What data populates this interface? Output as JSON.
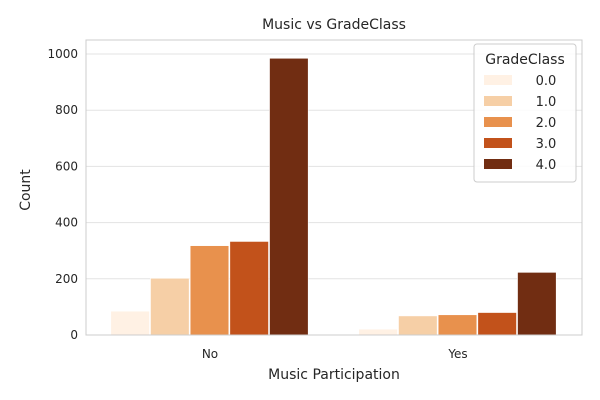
{
  "chart_data": {
    "type": "bar",
    "title": "Music vs GradeClass",
    "xlabel": "Music Participation",
    "ylabel": "Count",
    "categories": [
      "No",
      "Yes"
    ],
    "ylim": [
      0,
      1050
    ],
    "yticks": [
      0,
      200,
      400,
      600,
      800,
      1000
    ],
    "grid": true,
    "legend": {
      "title": "GradeClass",
      "placement": "top-right"
    },
    "series": [
      {
        "name": "0.0",
        "color": "#fff1e4",
        "values": [
          85,
          21
        ]
      },
      {
        "name": "1.0",
        "color": "#f6cfa6",
        "values": [
          202,
          68
        ]
      },
      {
        "name": "2.0",
        "color": "#e8914d",
        "values": [
          318,
          72
        ]
      },
      {
        "name": "3.0",
        "color": "#c2521b",
        "values": [
          333,
          80
        ]
      },
      {
        "name": "4.0",
        "color": "#712d12",
        "values": [
          985,
          223
        ]
      }
    ]
  }
}
